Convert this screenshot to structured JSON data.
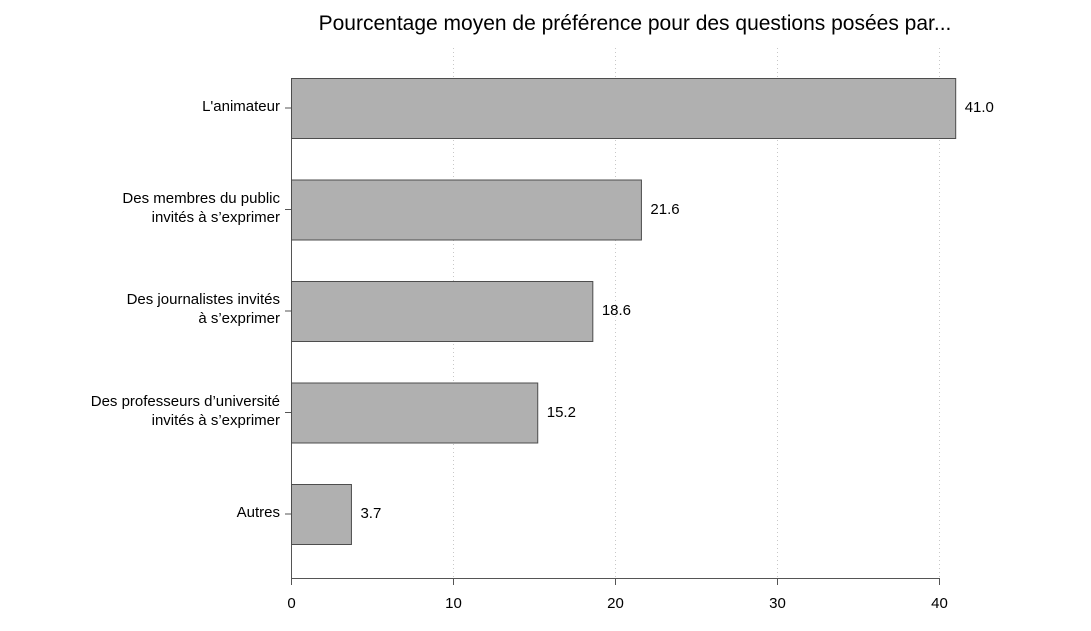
{
  "chart_data": {
    "type": "bar",
    "orientation": "horizontal",
    "title": "Pourcentage moyen de préférence pour des questions posées par...",
    "xlabel": "",
    "ylabel": "",
    "categories": [
      "L'animateur",
      "Des membres du public\ninvités à s’exprimer",
      "Des journalistes invités\nà s’exprimer",
      "Des professeurs d’université\ninvités à s’exprimer",
      "Autres"
    ],
    "values": [
      41.0,
      21.6,
      18.6,
      15.2,
      3.7
    ],
    "value_labels": [
      "41.0",
      "21.6",
      "18.6",
      "15.2",
      "3.7"
    ],
    "xlim": [
      0,
      40
    ],
    "xticks": [
      0,
      10,
      20,
      30,
      40
    ],
    "xtick_labels": [
      "0",
      "10",
      "20",
      "30",
      "40"
    ],
    "grid": "vertical dotted",
    "bar_color": "#b0b0b0",
    "bar_edge_color": "#4d4d4d",
    "gridline_color": "#c8c8c8",
    "axis_color": "#555555"
  }
}
